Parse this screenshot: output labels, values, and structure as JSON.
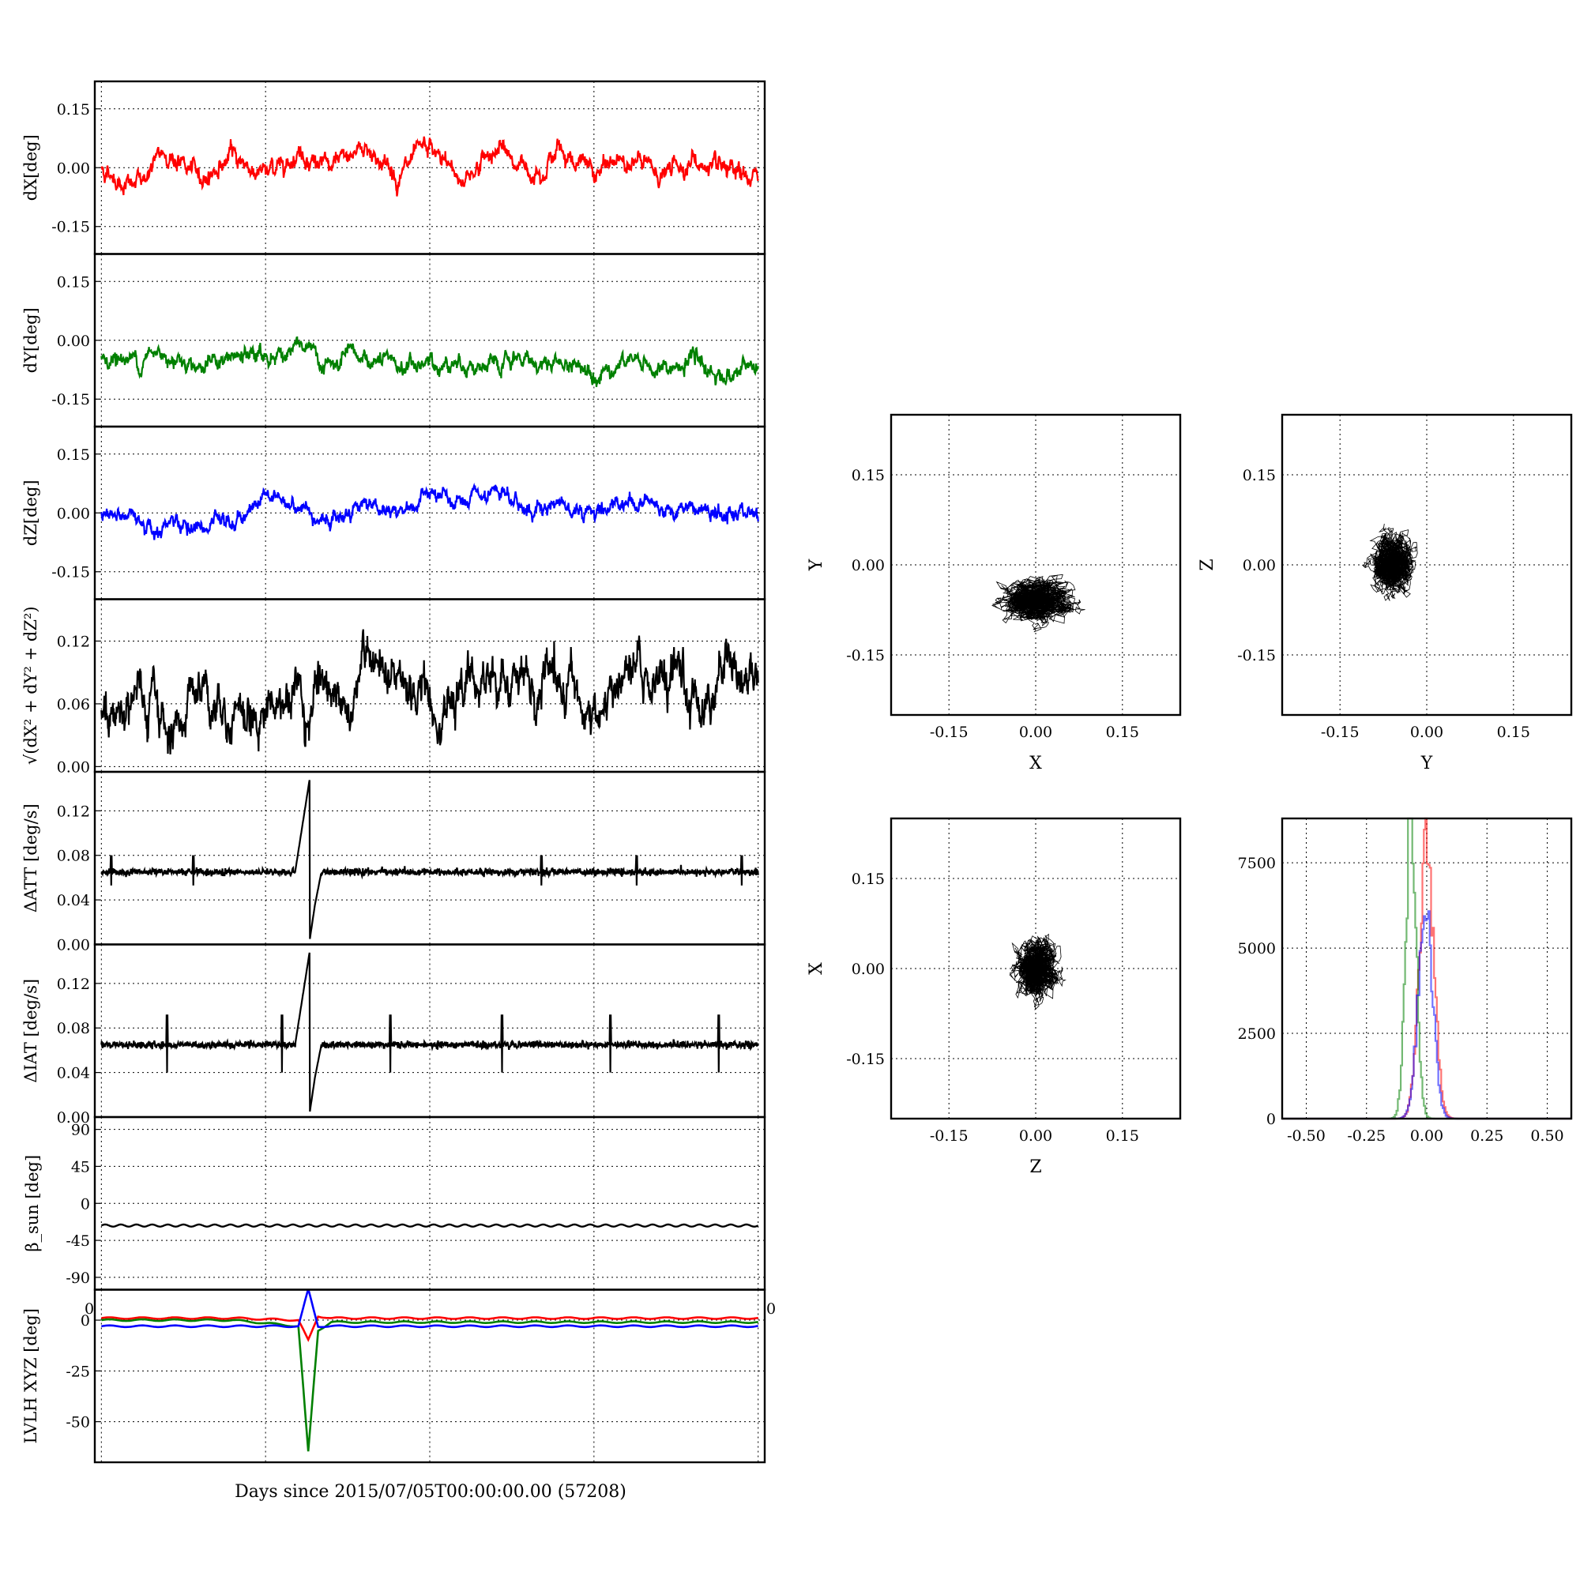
{
  "chart_data": {
    "type": "line",
    "xlabel": "Days since 2015/07/05T00:00:00.00 (57208)",
    "time_series_panels": [
      {
        "ylabel": "dX[deg]",
        "color": "#ff0000",
        "ylim": [
          -0.22,
          0.22
        ],
        "yticks": [
          "0.15",
          "0.00",
          "-0.15"
        ],
        "ytick_values": [
          0.15,
          0.0,
          -0.15
        ],
        "base": 0.0,
        "amplitude": 0.035,
        "noise": 0.013,
        "x": [
          0,
          1,
          2,
          3,
          4,
          5,
          6,
          7,
          8,
          9,
          10,
          11,
          12,
          13,
          14,
          15,
          16,
          17,
          18,
          19,
          20
        ],
        "values": [
          0.0,
          -0.05,
          0.04,
          -0.03,
          0.03,
          -0.02,
          0.05,
          -0.01,
          0.06,
          -0.02,
          0.04,
          -0.03,
          0.05,
          -0.01,
          0.05,
          -0.02,
          0.03,
          -0.02,
          0.02,
          -0.03,
          -0.03
        ]
      },
      {
        "ylabel": "dY[deg]",
        "color": "#008000",
        "ylim": [
          -0.22,
          0.22
        ],
        "yticks": [
          "0.15",
          "0.00",
          "-0.15"
        ],
        "ytick_values": [
          0.15,
          0.0,
          -0.15
        ],
        "base": -0.06,
        "amplitude": 0.025,
        "noise": 0.012,
        "x": [
          0,
          1,
          2,
          3,
          4,
          5,
          6,
          7,
          8,
          9,
          10,
          11,
          12,
          13,
          14,
          15,
          16,
          17,
          18,
          19,
          20
        ],
        "values": [
          -0.04,
          -0.05,
          -0.03,
          -0.06,
          -0.05,
          -0.04,
          -0.02,
          -0.07,
          -0.05,
          -0.07,
          -0.06,
          -0.05,
          -0.08,
          -0.05,
          -0.06,
          -0.07,
          -0.05,
          -0.08,
          -0.06,
          -0.09,
          -0.07
        ]
      },
      {
        "ylabel": "dZ[deg]",
        "color": "#0000ff",
        "ylim": [
          -0.22,
          0.22
        ],
        "yticks": [
          "0.15",
          "0.00",
          "-0.15"
        ],
        "ytick_values": [
          0.15,
          0.0,
          -0.15
        ],
        "base": 0.0,
        "amplitude": 0.028,
        "noise": 0.011,
        "x": [
          0,
          1,
          2,
          3,
          4,
          5,
          6,
          7,
          8,
          9,
          10,
          11,
          12,
          13,
          14,
          15,
          16,
          17,
          18,
          19,
          20
        ],
        "values": [
          0.0,
          -0.02,
          -0.03,
          -0.04,
          -0.03,
          0.05,
          0.02,
          -0.02,
          0.03,
          0.0,
          0.04,
          0.02,
          0.04,
          0.01,
          0.03,
          0.0,
          0.04,
          0.02,
          0.01,
          -0.01,
          0.0
        ]
      },
      {
        "ylabel": "sqrt(dX² + dY² + dZ²)",
        "color": "#000000",
        "ylim": [
          -0.005,
          0.16
        ],
        "yticks": [
          "0.12",
          "0.06",
          "0.00"
        ],
        "ytick_values": [
          0.12,
          0.06,
          0.0
        ],
        "base": 0.065,
        "amplitude": 0.02,
        "noise": 0.012,
        "x": [
          0,
          1,
          2,
          3,
          4,
          5,
          6,
          7,
          8,
          9,
          10,
          11,
          12,
          13,
          14,
          15,
          16,
          17,
          18,
          19,
          20
        ],
        "values": [
          0.04,
          0.07,
          0.03,
          0.085,
          0.05,
          0.06,
          0.07,
          0.055,
          0.09,
          0.06,
          0.075,
          0.07,
          0.085,
          0.065,
          0.09,
          0.04,
          0.085,
          0.08,
          0.06,
          0.1,
          0.08
        ]
      },
      {
        "ylabel": "ΔATT [deg/s]",
        "color": "#000000",
        "ylim": [
          0,
          0.155
        ],
        "yticks": [
          "0.12",
          "0.08",
          "0.04",
          "0.00"
        ],
        "ytick_values": [
          0.12,
          0.08,
          0.04,
          0.0
        ],
        "base": 0.065,
        "amplitude": 0.0,
        "noise": 0.0015,
        "x": [
          0,
          1,
          2,
          3,
          4,
          5,
          6,
          7,
          8,
          9,
          10,
          11,
          12,
          13,
          14,
          15,
          16,
          17,
          18,
          19,
          20
        ],
        "values": [
          0.065,
          0.065,
          0.065,
          0.065,
          0.068,
          0.065,
          0.065,
          0.065,
          0.065,
          0.065,
          0.065,
          0.065,
          0.065,
          0.065,
          0.065,
          0.065,
          0.065,
          0.065,
          0.065,
          0.065,
          0.065
        ]
      },
      {
        "ylabel": "ΔIAT [deg/s]",
        "color": "#000000",
        "ylim": [
          0,
          0.155
        ],
        "yticks": [
          "0.12",
          "0.08",
          "0.04",
          "0.00"
        ],
        "ytick_values": [
          0.12,
          0.08,
          0.04,
          0.0
        ],
        "base": 0.065,
        "amplitude": 0.0,
        "noise": 0.0015,
        "x": [
          0,
          1,
          2,
          3,
          4,
          5,
          6,
          7,
          8,
          9,
          10,
          11,
          12,
          13,
          14,
          15,
          16,
          17,
          18,
          19,
          20
        ],
        "values": [
          0.065,
          0.065,
          0.065,
          0.065,
          0.068,
          0.065,
          0.065,
          0.065,
          0.065,
          0.065,
          0.065,
          0.065,
          0.065,
          0.065,
          0.065,
          0.065,
          0.065,
          0.065,
          0.065,
          0.065,
          0.065
        ]
      },
      {
        "ylabel": "β_sun [deg]",
        "color": "#000000",
        "ylim": [
          -105,
          105
        ],
        "yticks": [
          "90",
          "45",
          "0",
          "-45",
          "-90"
        ],
        "ytick_values": [
          90,
          45,
          0,
          -45,
          -90
        ],
        "base": -27,
        "amplitude": 0.0,
        "noise": 0.0,
        "x": [
          0,
          20
        ],
        "values": [
          -27,
          -27
        ]
      },
      {
        "ylabel": "LVLH XYZ [deg]",
        "ylim": [
          -70,
          15
        ],
        "yticks": [
          "0",
          "-25",
          "-50"
        ],
        "ytick_values": [
          0,
          -25,
          -50
        ],
        "series": [
          {
            "color": "#ff0000",
            "x": [
              0,
              4,
              6,
              6.3,
              6.6,
              7,
              20
            ],
            "values": [
              1,
              1,
              0,
              -10,
              2,
              1,
              1
            ]
          },
          {
            "color": "#008000",
            "x": [
              0,
              4,
              6,
              6.3,
              6.6,
              7,
              20
            ],
            "values": [
              0,
              0,
              -3,
              -65,
              -5,
              -1,
              -1
            ]
          },
          {
            "color": "#0000ff",
            "x": [
              0,
              4,
              6,
              6.3,
              6.6,
              7,
              20
            ],
            "values": [
              -3,
              -3,
              -3,
              15,
              -3,
              -3,
              -3
            ]
          }
        ]
      }
    ],
    "scatter_panels": [
      {
        "xlabel": "X",
        "ylabel": "Y",
        "xlim": [
          -0.25,
          0.25
        ],
        "ylim": [
          -0.25,
          0.25
        ],
        "ticks": [
          "-0.15",
          "0.00",
          "0.15"
        ],
        "tick_values": [
          -0.15,
          0.0,
          0.15
        ],
        "center": [
          0.0,
          -0.06
        ],
        "spread": [
          0.05,
          0.03
        ],
        "color": "#000000"
      },
      {
        "xlabel": "Y",
        "ylabel": "Z",
        "xlim": [
          -0.25,
          0.25
        ],
        "ylim": [
          -0.25,
          0.25
        ],
        "ticks": [
          "-0.15",
          "0.00",
          "0.15"
        ],
        "tick_values": [
          -0.15,
          0.0,
          0.15
        ],
        "center": [
          -0.06,
          0.0
        ],
        "spread": [
          0.03,
          0.04
        ],
        "color": "#000000"
      },
      {
        "xlabel": "Z",
        "ylabel": "X",
        "xlim": [
          -0.25,
          0.25
        ],
        "ylim": [
          -0.25,
          0.25
        ],
        "ticks": [
          "-0.15",
          "0.00",
          "0.15"
        ],
        "tick_values": [
          -0.15,
          0.0,
          0.15
        ],
        "center": [
          0.0,
          0.0
        ],
        "spread": [
          0.03,
          0.04
        ],
        "color": "#000000"
      }
    ],
    "histogram": {
      "type": "histogram",
      "xlim": [
        -0.6,
        0.6
      ],
      "ylim": [
        0,
        8800
      ],
      "xticks": [
        "-0.50",
        "-0.25",
        "0.00",
        "0.25",
        "0.50"
      ],
      "xtick_values": [
        -0.5,
        -0.25,
        0.0,
        0.25,
        0.5
      ],
      "yticks": [
        "7500",
        "5000",
        "2500",
        "0"
      ],
      "ytick_values": [
        7500,
        5000,
        2500,
        0
      ],
      "series": [
        {
          "color": "#ff0000",
          "mean": 0.0,
          "std": 0.03,
          "peak": 8000
        },
        {
          "color": "#008000",
          "mean": -0.065,
          "std": 0.022,
          "peak": 8700
        },
        {
          "color": "#0000ff",
          "mean": -0.005,
          "std": 0.03,
          "peak": 6000
        }
      ]
    },
    "time_xticks": [
      "0",
      "0"
    ]
  }
}
